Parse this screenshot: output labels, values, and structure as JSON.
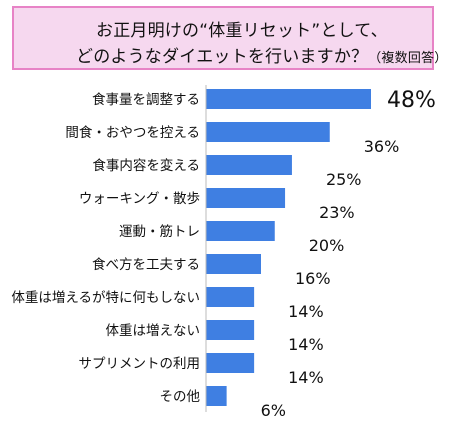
{
  "title": {
    "line1": "お正月明けの“体重リセット”として、",
    "line2": "どのようなダイエットを行いますか？",
    "subtitle": "（複数回答）"
  },
  "colors": {
    "bar": "#3f7fe2",
    "title_bg": "#f6d8ef",
    "title_border": "#e783c6",
    "axis": "#bbbbbb"
  },
  "chart_data": {
    "type": "bar",
    "orientation": "horizontal",
    "title": "お正月明けの“体重リセット”として、どのようなダイエットを行いますか？（複数回答）",
    "categories": [
      "食事量を調整する",
      "間食・おやつを控える",
      "食事内容を変える",
      "ウォーキング・散歩",
      "運動・筋トレ",
      "食べ方を工夫する",
      "体重は増えるが特に何もしない",
      "体重は増えない",
      "サプリメントの利用",
      "その他"
    ],
    "values": [
      48,
      36,
      25,
      23,
      20,
      16,
      14,
      14,
      14,
      6
    ],
    "labels": [
      "48%",
      "36%",
      "25%",
      "23%",
      "20%",
      "16%",
      "14%",
      "14%",
      "14%",
      "6%"
    ],
    "unit": "%",
    "xlim": [
      0,
      48
    ],
    "grid": false,
    "legend": "none"
  }
}
